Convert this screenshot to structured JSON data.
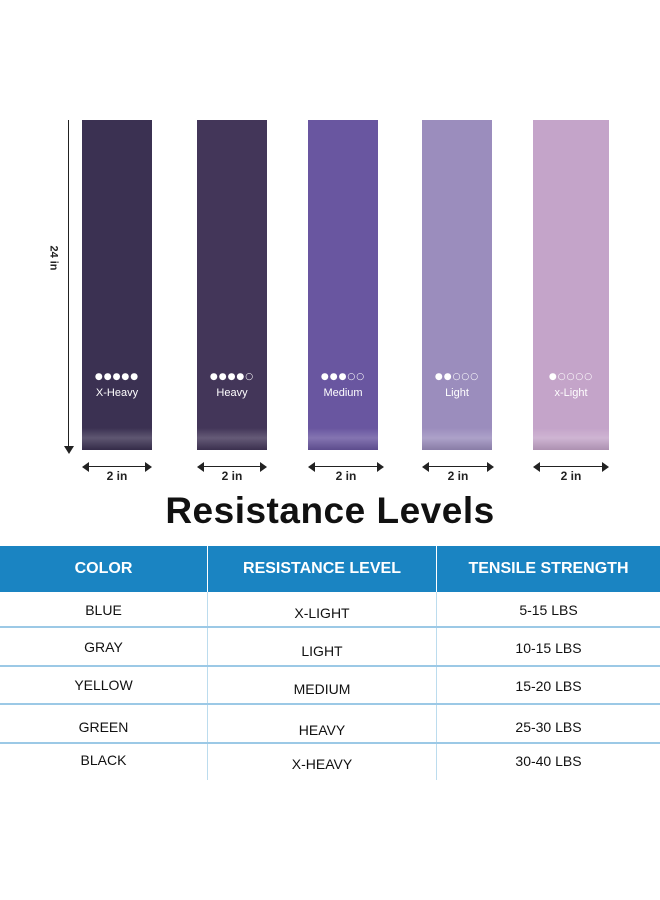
{
  "figure": {
    "height_label": "24 in",
    "width_label": "2 in",
    "bands": [
      {
        "level": "X-Heavy",
        "dots": "●●●●●",
        "color": "#3b3152"
      },
      {
        "level": "Heavy",
        "dots": "●●●●○",
        "color": "#433659"
      },
      {
        "level": "Medium",
        "dots": "●●●○○",
        "color": "#6956a0"
      },
      {
        "level": "Light",
        "dots": "●●○○○",
        "color": "#9b8dbd"
      },
      {
        "level": "x-Light",
        "dots": "●○○○○",
        "color": "#c4a4c9"
      }
    ]
  },
  "title": "Resistance Levels",
  "table": {
    "header_color": "#1a84c2",
    "headers": [
      "COLOR",
      "RESISTANCE LEVEL",
      "TENSILE STRENGTH"
    ],
    "rows": [
      [
        "BLUE",
        "X-LIGHT",
        "5-15 LBS"
      ],
      [
        "GRAY",
        "LIGHT",
        "10-15 LBS"
      ],
      [
        "YELLOW",
        "MEDIUM",
        "15-20 LBS"
      ],
      [
        "GREEN",
        "HEAVY",
        "25-30 LBS"
      ],
      [
        "BLACK",
        "X-HEAVY",
        "30-40 LBS"
      ]
    ]
  }
}
